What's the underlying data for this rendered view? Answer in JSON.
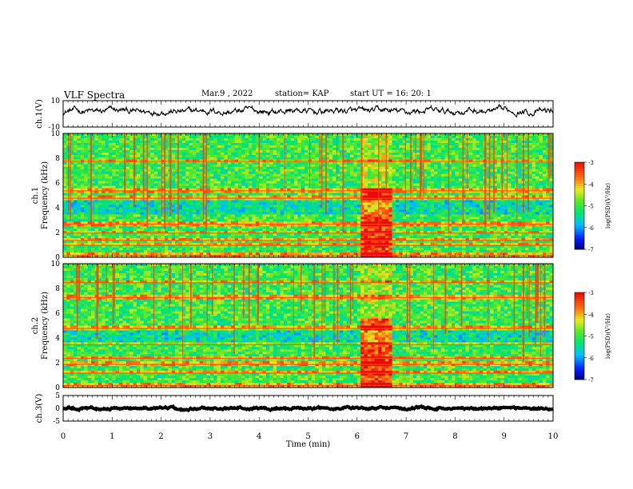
{
  "header": {
    "title": "VLF Spectra",
    "date": "Mar.9 , 2022",
    "station": "station= KAP",
    "start": "start UT = 16: 20: 1"
  },
  "chart_data": [
    {
      "type": "line",
      "name": "ch1-waveform",
      "ylabel": "ch.1(V)",
      "ylim": [
        -10,
        10
      ],
      "yticks": [
        "10",
        "-10"
      ],
      "xlim": [
        0,
        10
      ],
      "baseline": 2,
      "amplitude": 3
    },
    {
      "type": "heatmap",
      "name": "ch1-spectrogram",
      "ylabel_top": "ch.1",
      "ylabel": "Frequency (kHz)",
      "ylim": [
        0,
        10
      ],
      "yticks": [
        "0",
        "2",
        "4",
        "6",
        "8",
        "10"
      ],
      "xlim": [
        0,
        10
      ],
      "burst_interval_min": [
        6.1,
        6.7
      ],
      "bands_khz": [
        0.2,
        1.0,
        1.4,
        2.0,
        2.7,
        4.8,
        5.4,
        7.8
      ],
      "colorbar": {
        "label": "log(PSD)(V²/Hz)",
        "ticks": [
          "-3",
          "-4",
          "-5",
          "-6",
          "-7"
        ],
        "range": [
          -7,
          -3
        ]
      }
    },
    {
      "type": "heatmap",
      "name": "ch2-spectrogram",
      "ylabel_top": "ch.2",
      "ylabel": "Frequency (kHz)",
      "ylim": [
        0,
        10
      ],
      "yticks": [
        "0",
        "2",
        "4",
        "6",
        "8",
        "10"
      ],
      "xlim": [
        0,
        10
      ],
      "burst_interval_min": [
        6.1,
        6.7
      ],
      "bands_khz": [
        0.2,
        1.2,
        1.9,
        2.4,
        3.5,
        4.8,
        7.3,
        8.5
      ],
      "colorbar": {
        "label": "log(PSD)(V²/Hz)",
        "ticks": [
          "-3",
          "-4",
          "-5",
          "-6",
          "-7"
        ],
        "range": [
          -7,
          -3
        ]
      }
    },
    {
      "type": "line",
      "name": "ch3-waveform",
      "ylabel": "ch.3(V)",
      "ylim": [
        -5,
        5
      ],
      "yticks": [
        "5",
        "0",
        "-5"
      ],
      "xlim": [
        0,
        10
      ],
      "baseline": 0,
      "amplitude": 0.5
    }
  ],
  "xaxis": {
    "label": "Time (min)",
    "ticks": [
      "0",
      "1",
      "2",
      "3",
      "4",
      "5",
      "6",
      "7",
      "8",
      "9",
      "10"
    ]
  }
}
